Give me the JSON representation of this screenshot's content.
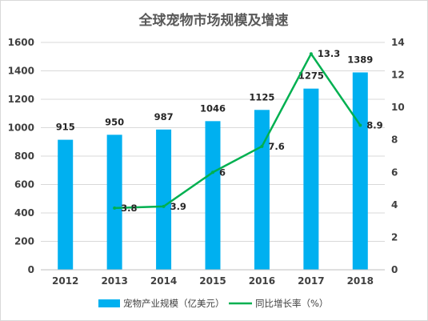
{
  "chart_data": {
    "type": "bar",
    "title": "全球宠物市场规模及增速",
    "categories": [
      "2012",
      "2013",
      "2014",
      "2015",
      "2016",
      "2017",
      "2018"
    ],
    "series": [
      {
        "name": "宠物产业规模（亿美元）",
        "type": "bar",
        "axis": "left",
        "color": "#00b0f0",
        "values": [
          915,
          950,
          987,
          1046,
          1125,
          1275,
          1389
        ],
        "labels": [
          "915",
          "950",
          "987",
          "1046",
          "1125",
          "1275",
          "1389"
        ]
      },
      {
        "name": "同比增长率（%）",
        "type": "line",
        "axis": "right",
        "color": "#00b050",
        "values": [
          null,
          3.8,
          3.9,
          6,
          7.6,
          13.3,
          8.9
        ],
        "labels": [
          "",
          "3.8",
          "3.9",
          "6",
          "7.6",
          "13.3",
          "8.9"
        ]
      }
    ],
    "y_left": {
      "ylim": [
        0,
        1600
      ],
      "ticks": [
        "0",
        "200",
        "400",
        "600",
        "800",
        "1000",
        "1200",
        "1400",
        "1600"
      ]
    },
    "y_right": {
      "ylim": [
        0,
        14
      ],
      "ticks": [
        "0",
        "2",
        "4",
        "6",
        "8",
        "10",
        "12",
        "14"
      ]
    },
    "grid": true,
    "legend_position": "bottom"
  }
}
